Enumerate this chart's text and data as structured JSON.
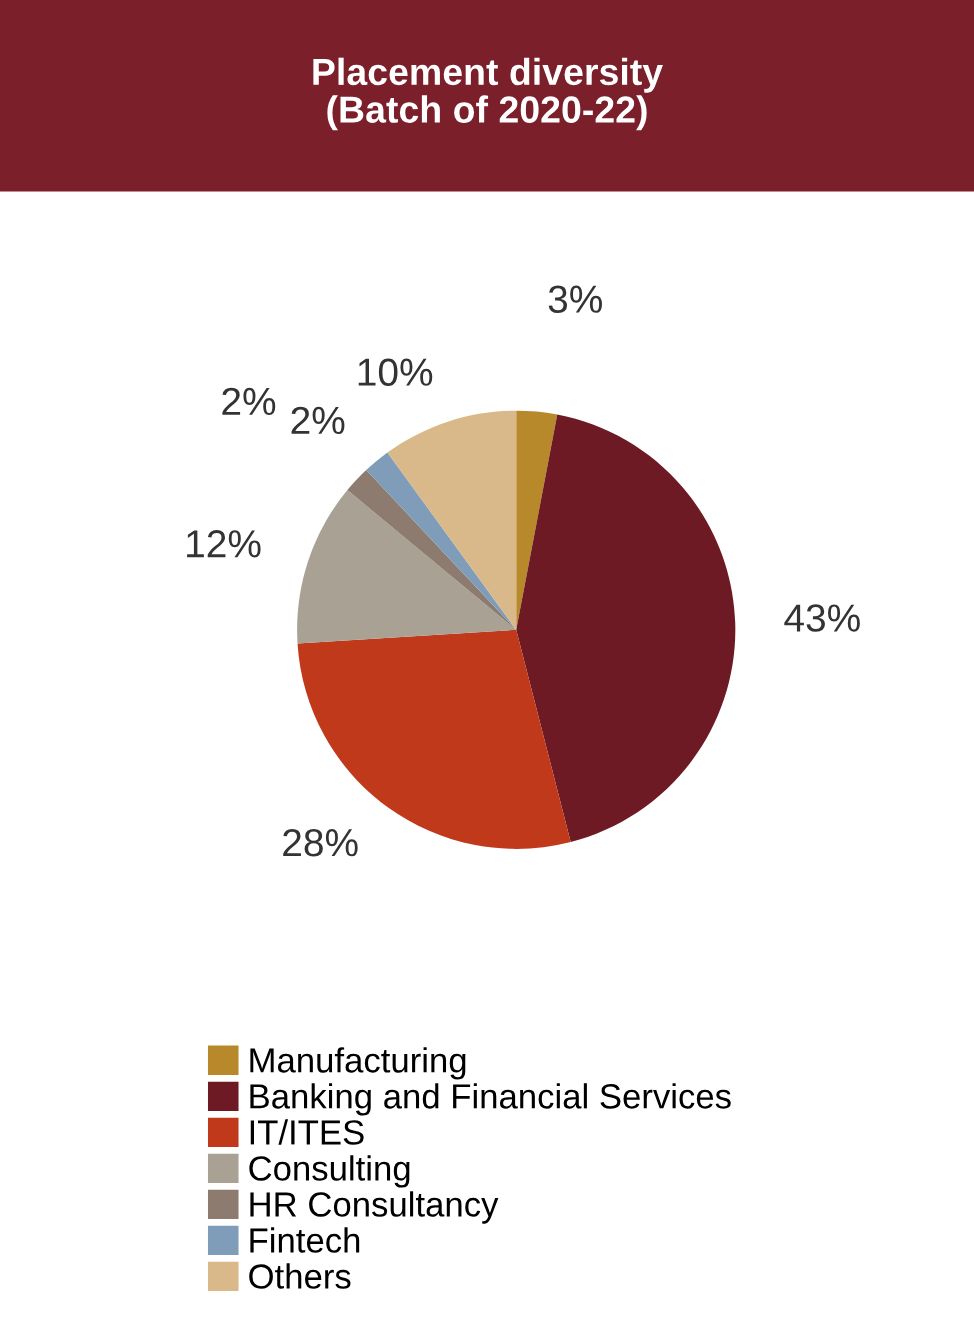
{
  "chart_data": {
    "type": "pie",
    "title": "Placement diversity\n(Batch of 2020-22)",
    "categories": [
      "Manufacturing",
      "Banking and Financial Services",
      "IT/ITES",
      "Consulting",
      "HR Consultancy",
      "Fintech",
      "Others"
    ],
    "values": [
      3,
      43,
      28,
      12,
      2,
      2,
      10
    ],
    "colors": [
      "#b8892a",
      "#6e1a24",
      "#c0391b",
      "#a8a194",
      "#8c7b6e",
      "#7f9db9",
      "#d9b98a"
    ],
    "value_labels": [
      "3%",
      "43%",
      "28%",
      "12%",
      "2%",
      "2%",
      "10%"
    ],
    "legend": "bottom"
  }
}
